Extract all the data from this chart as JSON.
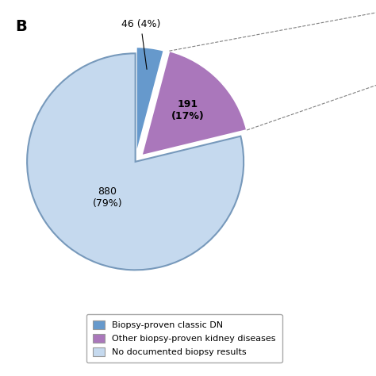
{
  "title_label": "B",
  "values": [
    46,
    191,
    880
  ],
  "colors": [
    "#6699cc",
    "#aa77bb",
    "#c5d9ee"
  ],
  "explode": [
    0.06,
    0.08,
    0.0
  ],
  "startangle": 90,
  "legend_labels": [
    "Biopsy-proven classic DN",
    "Other biopsy-proven kidney diseases",
    "No documented biopsy results"
  ],
  "legend_colors": [
    "#6699cc",
    "#aa77bb",
    "#c5d9ee"
  ],
  "background_color": "#ffffff"
}
